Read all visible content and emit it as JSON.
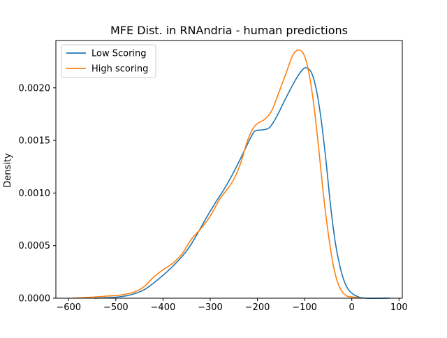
{
  "chart_data": {
    "type": "line",
    "title": "MFE Dist. in RNAndria - human predictions",
    "xlabel": "",
    "ylabel": "Density",
    "xlim": [
      -627,
      107
    ],
    "ylim": [
      0,
      0.00245
    ],
    "grid": false,
    "legend_position": "top-left",
    "x_ticks": [
      -600,
      -500,
      -400,
      -300,
      -200,
      -100,
      0,
      100
    ],
    "x_tick_labels": [
      "−600",
      "−500",
      "−400",
      "−300",
      "−200",
      "−100",
      "0",
      "100"
    ],
    "y_ticks": [
      0,
      0.0005,
      0.001,
      0.0015,
      0.002
    ],
    "y_tick_labels": [
      "0.0000",
      "0.0005",
      "0.0010",
      "0.0015",
      "0.0020"
    ],
    "series": [
      {
        "name": "Low Scoring",
        "color": "#1f77b4",
        "points": [
          [
            -545,
            0.0
          ],
          [
            -500,
            1e-05
          ],
          [
            -470,
            3e-05
          ],
          [
            -440,
            8e-05
          ],
          [
            -410,
            0.00018
          ],
          [
            -380,
            0.0003
          ],
          [
            -350,
            0.00045
          ],
          [
            -330,
            0.00059
          ],
          [
            -310,
            0.00075
          ],
          [
            -290,
            0.0009
          ],
          [
            -270,
            0.00104
          ],
          [
            -250,
            0.0012
          ],
          [
            -230,
            0.00138
          ],
          [
            -215,
            0.00152
          ],
          [
            -205,
            0.00159
          ],
          [
            -190,
            0.0016
          ],
          [
            -175,
            0.00162
          ],
          [
            -160,
            0.00172
          ],
          [
            -140,
            0.0019
          ],
          [
            -120,
            0.00207
          ],
          [
            -105,
            0.00217
          ],
          [
            -95,
            0.00219
          ],
          [
            -85,
            0.00214
          ],
          [
            -75,
            0.00198
          ],
          [
            -65,
            0.0017
          ],
          [
            -55,
            0.00132
          ],
          [
            -45,
            0.00088
          ],
          [
            -35,
            0.00053
          ],
          [
            -25,
            0.0003
          ],
          [
            -15,
            0.00015
          ],
          [
            -5,
            7e-05
          ],
          [
            10,
            2e-05
          ],
          [
            30,
            0.0
          ],
          [
            80,
            0.0
          ]
        ]
      },
      {
        "name": "High scoring",
        "color": "#ff7f0e",
        "points": [
          [
            -590,
            0.0
          ],
          [
            -550,
            1e-05
          ],
          [
            -520,
            2e-05
          ],
          [
            -490,
            3e-05
          ],
          [
            -460,
            6e-05
          ],
          [
            -440,
            0.00011
          ],
          [
            -420,
            0.0002
          ],
          [
            -400,
            0.00027
          ],
          [
            -380,
            0.00033
          ],
          [
            -360,
            0.00042
          ],
          [
            -340,
            0.00056
          ],
          [
            -320,
            0.00066
          ],
          [
            -300,
            0.00078
          ],
          [
            -280,
            0.00094
          ],
          [
            -265,
            0.00103
          ],
          [
            -250,
            0.00113
          ],
          [
            -235,
            0.00129
          ],
          [
            -220,
            0.00151
          ],
          [
            -205,
            0.00164
          ],
          [
            -185,
            0.0017
          ],
          [
            -170,
            0.00178
          ],
          [
            -155,
            0.00195
          ],
          [
            -140,
            0.00213
          ],
          [
            -125,
            0.00231
          ],
          [
            -112,
            0.00236
          ],
          [
            -100,
            0.0023
          ],
          [
            -90,
            0.00212
          ],
          [
            -80,
            0.00182
          ],
          [
            -70,
            0.00142
          ],
          [
            -60,
            0.00098
          ],
          [
            -50,
            0.00062
          ],
          [
            -40,
            0.00033
          ],
          [
            -30,
            0.00015
          ],
          [
            -20,
            6e-05
          ],
          [
            -10,
            2e-05
          ],
          [
            5,
            1e-05
          ],
          [
            20,
            0.0
          ]
        ]
      }
    ]
  }
}
